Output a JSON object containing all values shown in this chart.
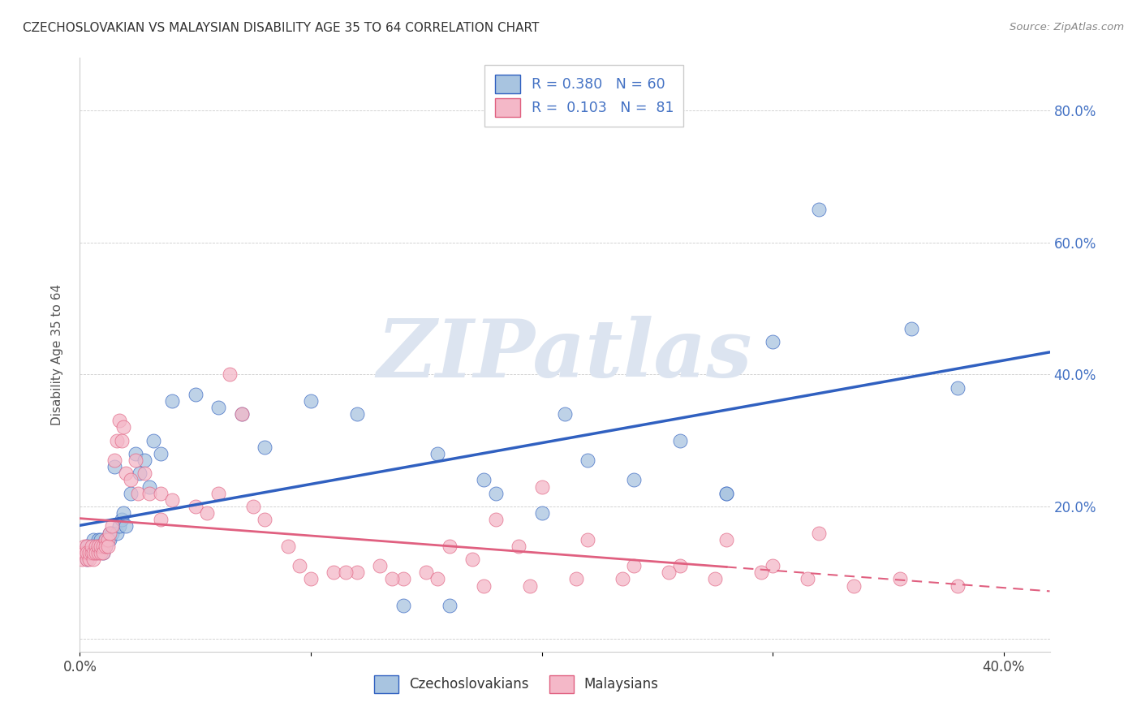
{
  "title": "CZECHOSLOVAKIAN VS MALAYSIAN DISABILITY AGE 35 TO 64 CORRELATION CHART",
  "source": "Source: ZipAtlas.com",
  "ylabel": "Disability Age 35 to 64",
  "xlim": [
    0.0,
    0.42
  ],
  "ylim": [
    -0.02,
    0.88
  ],
  "color_czech": "#a8c4e0",
  "color_malay": "#f4b8c8",
  "trendline_czech_color": "#3060c0",
  "trendline_malay_color": "#e06080",
  "background_color": "#ffffff",
  "watermark_color": "#dce4f0",
  "czech_x": [
    0.001,
    0.002,
    0.003,
    0.003,
    0.004,
    0.004,
    0.005,
    0.005,
    0.006,
    0.006,
    0.007,
    0.007,
    0.008,
    0.008,
    0.009,
    0.009,
    0.01,
    0.01,
    0.011,
    0.011,
    0.012,
    0.013,
    0.013,
    0.014,
    0.015,
    0.016,
    0.017,
    0.018,
    0.019,
    0.02,
    0.022,
    0.024,
    0.026,
    0.028,
    0.03,
    0.032,
    0.035,
    0.04,
    0.05,
    0.06,
    0.07,
    0.08,
    0.1,
    0.12,
    0.14,
    0.16,
    0.18,
    0.2,
    0.22,
    0.24,
    0.26,
    0.28,
    0.3,
    0.32,
    0.155,
    0.175,
    0.21,
    0.38,
    0.36,
    0.28
  ],
  "czech_y": [
    0.13,
    0.13,
    0.14,
    0.12,
    0.14,
    0.13,
    0.13,
    0.14,
    0.15,
    0.14,
    0.13,
    0.14,
    0.15,
    0.14,
    0.14,
    0.15,
    0.14,
    0.13,
    0.15,
    0.14,
    0.15,
    0.16,
    0.15,
    0.16,
    0.26,
    0.16,
    0.17,
    0.18,
    0.19,
    0.17,
    0.22,
    0.28,
    0.25,
    0.27,
    0.23,
    0.3,
    0.28,
    0.36,
    0.37,
    0.35,
    0.34,
    0.29,
    0.36,
    0.34,
    0.05,
    0.05,
    0.22,
    0.19,
    0.27,
    0.24,
    0.3,
    0.22,
    0.45,
    0.65,
    0.28,
    0.24,
    0.34,
    0.38,
    0.47,
    0.22
  ],
  "malay_x": [
    0.001,
    0.001,
    0.002,
    0.002,
    0.003,
    0.003,
    0.003,
    0.004,
    0.004,
    0.005,
    0.005,
    0.006,
    0.006,
    0.007,
    0.007,
    0.008,
    0.008,
    0.009,
    0.009,
    0.01,
    0.01,
    0.011,
    0.011,
    0.012,
    0.012,
    0.013,
    0.014,
    0.015,
    0.016,
    0.017,
    0.018,
    0.019,
    0.02,
    0.022,
    0.024,
    0.025,
    0.028,
    0.03,
    0.035,
    0.04,
    0.05,
    0.06,
    0.065,
    0.07,
    0.08,
    0.09,
    0.1,
    0.11,
    0.12,
    0.13,
    0.14,
    0.15,
    0.16,
    0.17,
    0.18,
    0.19,
    0.2,
    0.22,
    0.24,
    0.26,
    0.28,
    0.3,
    0.32,
    0.035,
    0.055,
    0.075,
    0.095,
    0.115,
    0.135,
    0.155,
    0.175,
    0.195,
    0.215,
    0.235,
    0.255,
    0.275,
    0.295,
    0.315,
    0.335,
    0.355,
    0.38
  ],
  "malay_y": [
    0.13,
    0.12,
    0.14,
    0.13,
    0.12,
    0.14,
    0.13,
    0.12,
    0.13,
    0.13,
    0.14,
    0.12,
    0.13,
    0.14,
    0.13,
    0.13,
    0.14,
    0.13,
    0.14,
    0.14,
    0.13,
    0.15,
    0.14,
    0.15,
    0.14,
    0.16,
    0.17,
    0.27,
    0.3,
    0.33,
    0.3,
    0.32,
    0.25,
    0.24,
    0.27,
    0.22,
    0.25,
    0.22,
    0.22,
    0.21,
    0.2,
    0.22,
    0.4,
    0.34,
    0.18,
    0.14,
    0.09,
    0.1,
    0.1,
    0.11,
    0.09,
    0.1,
    0.14,
    0.12,
    0.18,
    0.14,
    0.23,
    0.15,
    0.11,
    0.11,
    0.15,
    0.11,
    0.16,
    0.18,
    0.19,
    0.2,
    0.11,
    0.1,
    0.09,
    0.09,
    0.08,
    0.08,
    0.09,
    0.09,
    0.1,
    0.09,
    0.1,
    0.09,
    0.08,
    0.09,
    0.08
  ]
}
